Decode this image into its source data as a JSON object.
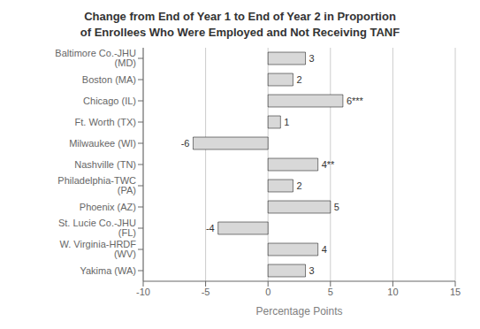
{
  "chart_data": {
    "type": "bar",
    "orientation": "horizontal",
    "title": "Change from End of Year 1 to End of Year 2 in Proportion\nof Enrollees Who Were Employed and Not Receiving TANF",
    "x_label": "Percentage Points",
    "categories": [
      "Baltimore Co.-JHU (MD)",
      "Boston (MA)",
      "Chicago (IL)",
      "Ft. Worth (TX)",
      "Milwaukee (WI)",
      "Nashville (TN)",
      "Philadelphia-TWC (PA)",
      "Phoenix (AZ)",
      "St. Lucie Co.-JHU (FL)",
      "W. Virginia-HRDF (WV)",
      "Yakima (WA)"
    ],
    "values": [
      3,
      2,
      6,
      1,
      -6,
      4,
      2,
      5,
      -4,
      4,
      3
    ],
    "value_labels": [
      "3",
      "2",
      "6***",
      "1",
      "-6",
      "4**",
      "2",
      "5",
      "-4",
      "4",
      "3"
    ],
    "data_labels": true,
    "color": "#d8d8d8",
    "xlim": [
      -10,
      15
    ],
    "xticks": [
      -10,
      -5,
      0,
      5,
      10,
      15
    ],
    "grid": true
  }
}
